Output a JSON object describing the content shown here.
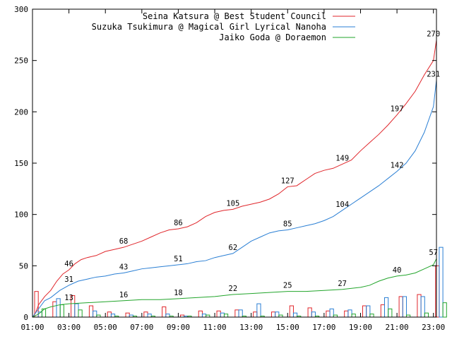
{
  "chart_data": {
    "type": "line",
    "title": "",
    "xlabel": "",
    "ylabel": "",
    "ylim": [
      0,
      300
    ],
    "xlim": [
      "01:00",
      "23:10"
    ],
    "yticks": [
      0,
      50,
      100,
      150,
      200,
      250,
      300
    ],
    "xticks": [
      "01:00",
      "03:00",
      "05:00",
      "07:00",
      "09:00",
      "11:00",
      "13:00",
      "15:00",
      "17:00",
      "19:00",
      "21:00",
      "23:00"
    ],
    "legend_position": "top-right",
    "grid": false,
    "series": [
      {
        "name": "Seina Katsura @ Best Student Council",
        "color": "#e0262b",
        "cumulative": [
          [
            "01:00",
            0
          ],
          [
            "01:10",
            4
          ],
          [
            "01:20",
            12
          ],
          [
            "01:40",
            20
          ],
          [
            "02:00",
            26
          ],
          [
            "02:20",
            35
          ],
          [
            "02:40",
            42
          ],
          [
            "03:00",
            46
          ],
          [
            "03:20",
            52
          ],
          [
            "03:40",
            56
          ],
          [
            "04:00",
            58
          ],
          [
            "04:30",
            60
          ],
          [
            "05:00",
            64
          ],
          [
            "05:30",
            66
          ],
          [
            "06:00",
            68
          ],
          [
            "06:30",
            71
          ],
          [
            "07:00",
            74
          ],
          [
            "07:30",
            78
          ],
          [
            "08:00",
            82
          ],
          [
            "08:30",
            85
          ],
          [
            "09:00",
            86
          ],
          [
            "09:30",
            88
          ],
          [
            "10:00",
            92
          ],
          [
            "10:30",
            98
          ],
          [
            "11:00",
            102
          ],
          [
            "11:30",
            104
          ],
          [
            "12:00",
            105
          ],
          [
            "12:30",
            108
          ],
          [
            "13:00",
            110
          ],
          [
            "13:30",
            112
          ],
          [
            "14:00",
            115
          ],
          [
            "14:30",
            120
          ],
          [
            "15:00",
            127
          ],
          [
            "15:30",
            128
          ],
          [
            "16:00",
            134
          ],
          [
            "16:30",
            140
          ],
          [
            "17:00",
            143
          ],
          [
            "17:30",
            145
          ],
          [
            "18:00",
            149
          ],
          [
            "18:30",
            153
          ],
          [
            "19:00",
            162
          ],
          [
            "19:30",
            170
          ],
          [
            "20:00",
            178
          ],
          [
            "20:30",
            187
          ],
          [
            "21:00",
            197
          ],
          [
            "21:30",
            208
          ],
          [
            "22:00",
            220
          ],
          [
            "22:30",
            236
          ],
          [
            "23:00",
            250
          ],
          [
            "23:10",
            270
          ]
        ],
        "labels": [
          {
            "t": "03:00",
            "v": 46
          },
          {
            "t": "06:00",
            "v": 68
          },
          {
            "t": "09:00",
            "v": 86
          },
          {
            "t": "12:00",
            "v": 105
          },
          {
            "t": "15:00",
            "v": 127
          },
          {
            "t": "18:00",
            "v": 149
          },
          {
            "t": "21:00",
            "v": 197
          },
          {
            "t": "23:00",
            "v": 270
          }
        ],
        "hourly": [
          {
            "t": "01:00",
            "v": 25
          },
          {
            "t": "02:00",
            "v": 15
          },
          {
            "t": "03:00",
            "v": 21
          },
          {
            "t": "04:00",
            "v": 11
          },
          {
            "t": "05:00",
            "v": 5
          },
          {
            "t": "06:00",
            "v": 4
          },
          {
            "t": "07:00",
            "v": 5
          },
          {
            "t": "08:00",
            "v": 10
          },
          {
            "t": "09:00",
            "v": 2
          },
          {
            "t": "10:00",
            "v": 6
          },
          {
            "t": "11:00",
            "v": 6
          },
          {
            "t": "12:00",
            "v": 7
          },
          {
            "t": "13:00",
            "v": 5
          },
          {
            "t": "14:00",
            "v": 5
          },
          {
            "t": "15:00",
            "v": 11
          },
          {
            "t": "16:00",
            "v": 9
          },
          {
            "t": "17:00",
            "v": 6
          },
          {
            "t": "18:00",
            "v": 6
          },
          {
            "t": "19:00",
            "v": 11
          },
          {
            "t": "20:00",
            "v": 12
          },
          {
            "t": "21:00",
            "v": 20
          },
          {
            "t": "22:00",
            "v": 22
          },
          {
            "t": "23:00",
            "v": 50
          }
        ]
      },
      {
        "name": "Suzuka Tsukimura @ Magical Girl Lyrical Nanoha",
        "color": "#2a7fd4",
        "cumulative": [
          [
            "01:00",
            0
          ],
          [
            "01:20",
            8
          ],
          [
            "01:40",
            16
          ],
          [
            "02:00",
            19
          ],
          [
            "02:30",
            26
          ],
          [
            "03:00",
            31
          ],
          [
            "03:30",
            35
          ],
          [
            "04:00",
            37
          ],
          [
            "04:30",
            39
          ],
          [
            "05:00",
            40
          ],
          [
            "05:30",
            42
          ],
          [
            "06:00",
            43
          ],
          [
            "06:30",
            45
          ],
          [
            "07:00",
            47
          ],
          [
            "07:30",
            48
          ],
          [
            "08:00",
            49
          ],
          [
            "08:30",
            50
          ],
          [
            "09:00",
            51
          ],
          [
            "09:30",
            52
          ],
          [
            "10:00",
            54
          ],
          [
            "10:30",
            55
          ],
          [
            "11:00",
            58
          ],
          [
            "11:30",
            60
          ],
          [
            "12:00",
            62
          ],
          [
            "12:30",
            68
          ],
          [
            "13:00",
            74
          ],
          [
            "13:30",
            78
          ],
          [
            "14:00",
            82
          ],
          [
            "14:30",
            84
          ],
          [
            "15:00",
            85
          ],
          [
            "15:30",
            87
          ],
          [
            "16:00",
            89
          ],
          [
            "16:30",
            91
          ],
          [
            "17:00",
            94
          ],
          [
            "17:30",
            98
          ],
          [
            "18:00",
            104
          ],
          [
            "18:30",
            110
          ],
          [
            "19:00",
            116
          ],
          [
            "19:30",
            122
          ],
          [
            "20:00",
            128
          ],
          [
            "20:30",
            135
          ],
          [
            "21:00",
            142
          ],
          [
            "21:30",
            150
          ],
          [
            "22:00",
            162
          ],
          [
            "22:30",
            180
          ],
          [
            "23:00",
            205
          ],
          [
            "23:10",
            231
          ]
        ],
        "labels": [
          {
            "t": "03:00",
            "v": 31
          },
          {
            "t": "06:00",
            "v": 43
          },
          {
            "t": "09:00",
            "v": 51
          },
          {
            "t": "12:00",
            "v": 62
          },
          {
            "t": "15:00",
            "v": 85
          },
          {
            "t": "18:00",
            "v": 104
          },
          {
            "t": "21:00",
            "v": 142
          },
          {
            "t": "23:00",
            "v": 231
          }
        ],
        "hourly": [
          {
            "t": "01:00",
            "v": 5
          },
          {
            "t": "02:00",
            "v": 18
          },
          {
            "t": "03:00",
            "v": 13
          },
          {
            "t": "04:00",
            "v": 6
          },
          {
            "t": "05:00",
            "v": 3
          },
          {
            "t": "06:00",
            "v": 2
          },
          {
            "t": "07:00",
            "v": 3
          },
          {
            "t": "08:00",
            "v": 3
          },
          {
            "t": "09:00",
            "v": 1
          },
          {
            "t": "10:00",
            "v": 3
          },
          {
            "t": "11:00",
            "v": 4
          },
          {
            "t": "12:00",
            "v": 7
          },
          {
            "t": "13:00",
            "v": 13
          },
          {
            "t": "14:00",
            "v": 5
          },
          {
            "t": "15:00",
            "v": 4
          },
          {
            "t": "16:00",
            "v": 5
          },
          {
            "t": "17:00",
            "v": 8
          },
          {
            "t": "18:00",
            "v": 7
          },
          {
            "t": "19:00",
            "v": 11
          },
          {
            "t": "20:00",
            "v": 19
          },
          {
            "t": "21:00",
            "v": 20
          },
          {
            "t": "22:00",
            "v": 20
          },
          {
            "t": "23:00",
            "v": 68
          }
        ]
      },
      {
        "name": "Jaiko Goda @ Doraemon",
        "color": "#22a52b",
        "cumulative": [
          [
            "01:00",
            0
          ],
          [
            "01:20",
            3
          ],
          [
            "01:40",
            8
          ],
          [
            "02:00",
            10
          ],
          [
            "02:30",
            12
          ],
          [
            "03:00",
            13
          ],
          [
            "04:00",
            14
          ],
          [
            "05:00",
            15
          ],
          [
            "06:00",
            16
          ],
          [
            "07:00",
            17
          ],
          [
            "08:00",
            17
          ],
          [
            "09:00",
            18
          ],
          [
            "10:00",
            19
          ],
          [
            "11:00",
            20
          ],
          [
            "12:00",
            22
          ],
          [
            "13:00",
            23
          ],
          [
            "14:00",
            24
          ],
          [
            "15:00",
            25
          ],
          [
            "16:00",
            25
          ],
          [
            "17:00",
            26
          ],
          [
            "18:00",
            27
          ],
          [
            "19:00",
            29
          ],
          [
            "19:30",
            31
          ],
          [
            "20:00",
            35
          ],
          [
            "20:30",
            38
          ],
          [
            "21:00",
            40
          ],
          [
            "21:30",
            41
          ],
          [
            "22:00",
            43
          ],
          [
            "22:30",
            47
          ],
          [
            "23:00",
            51
          ],
          [
            "23:10",
            57
          ]
        ],
        "labels": [
          {
            "t": "03:00",
            "v": 13
          },
          {
            "t": "06:00",
            "v": 16
          },
          {
            "t": "09:00",
            "v": 18
          },
          {
            "t": "12:00",
            "v": 22
          },
          {
            "t": "15:00",
            "v": 25
          },
          {
            "t": "18:00",
            "v": 27
          },
          {
            "t": "21:00",
            "v": 40
          },
          {
            "t": "23:00",
            "v": 57
          }
        ],
        "hourly": [
          {
            "t": "01:00",
            "v": 8
          },
          {
            "t": "02:00",
            "v": 12
          },
          {
            "t": "03:00",
            "v": 7
          },
          {
            "t": "04:00",
            "v": 2
          },
          {
            "t": "05:00",
            "v": 1
          },
          {
            "t": "06:00",
            "v": 1
          },
          {
            "t": "07:00",
            "v": 1
          },
          {
            "t": "08:00",
            "v": 1
          },
          {
            "t": "09:00",
            "v": 1
          },
          {
            "t": "10:00",
            "v": 2
          },
          {
            "t": "11:00",
            "v": 3
          },
          {
            "t": "12:00",
            "v": 1
          },
          {
            "t": "13:00",
            "v": 1
          },
          {
            "t": "14:00",
            "v": 2
          },
          {
            "t": "15:00",
            "v": 1
          },
          {
            "t": "16:00",
            "v": 1
          },
          {
            "t": "17:00",
            "v": 2
          },
          {
            "t": "18:00",
            "v": 3
          },
          {
            "t": "19:00",
            "v": 3
          },
          {
            "t": "20:00",
            "v": 8
          },
          {
            "t": "21:00",
            "v": 2
          },
          {
            "t": "22:00",
            "v": 4
          },
          {
            "t": "23:00",
            "v": 14
          }
        ]
      }
    ]
  }
}
